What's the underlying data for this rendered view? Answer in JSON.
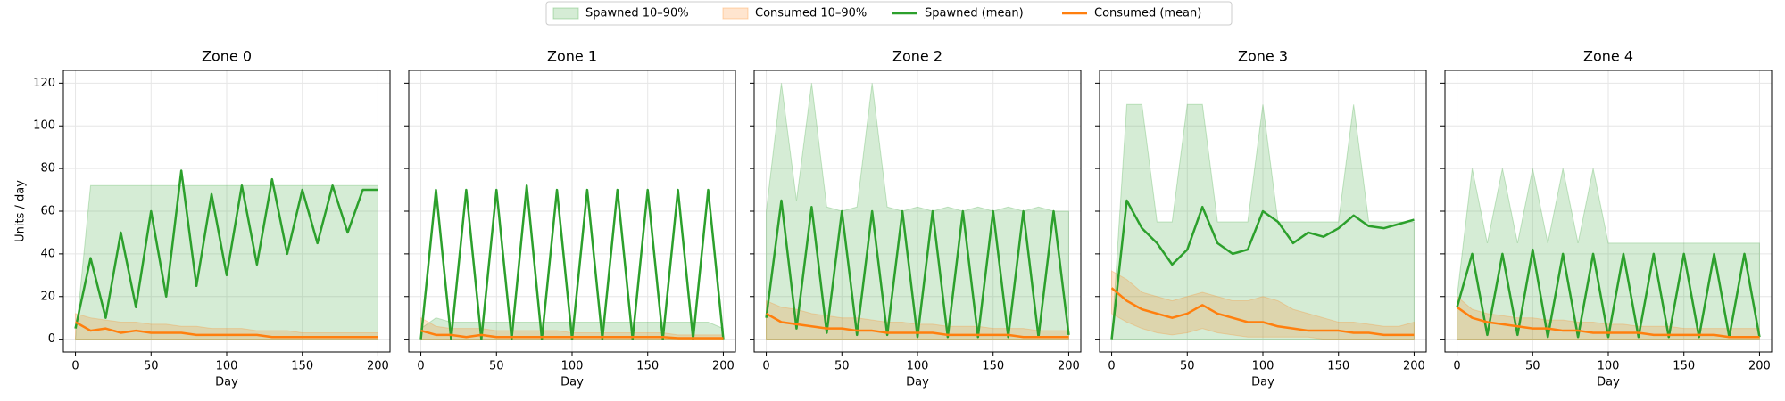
{
  "chart_data": [
    {
      "type": "line",
      "title": "Zone 0",
      "x_label": "Day",
      "y_label": "Units / day",
      "grid": true,
      "x": [
        0,
        10,
        20,
        30,
        40,
        50,
        60,
        70,
        80,
        90,
        100,
        110,
        120,
        130,
        140,
        150,
        160,
        170,
        180,
        190,
        200
      ],
      "xlim": [
        -8,
        208
      ],
      "xticks": [
        0,
        50,
        100,
        150,
        200
      ],
      "ylim": [
        -6,
        126
      ],
      "yticks": [
        0,
        20,
        40,
        60,
        80,
        100,
        120
      ],
      "bands": [
        {
          "name": "Spawned 10–90%",
          "color": "#2ca02c",
          "low": [
            0,
            0,
            0,
            0,
            0,
            0,
            0,
            0,
            0,
            0,
            0,
            0,
            0,
            0,
            0,
            0,
            0,
            0,
            0,
            0,
            0
          ],
          "high": [
            0,
            72,
            72,
            72,
            72,
            72,
            72,
            72,
            72,
            72,
            72,
            72,
            72,
            72,
            72,
            72,
            72,
            72,
            72,
            72,
            72
          ]
        },
        {
          "name": "Consumed 10–90%",
          "color": "#ff7f0e",
          "low": [
            0,
            0,
            0,
            0,
            0,
            0,
            0,
            0,
            0,
            0,
            0,
            0,
            0,
            0,
            0,
            0,
            0,
            0,
            0,
            0,
            0
          ],
          "high": [
            12,
            10,
            9,
            8,
            8,
            7,
            7,
            6,
            6,
            5,
            5,
            5,
            4,
            4,
            4,
            3,
            3,
            3,
            3,
            3,
            3
          ]
        }
      ],
      "series": [
        {
          "name": "Spawned (mean)",
          "color": "#2ca02c",
          "values": [
            5,
            38,
            10,
            50,
            15,
            60,
            20,
            79,
            25,
            68,
            30,
            72,
            35,
            75,
            40,
            70,
            45,
            72,
            50,
            70,
            70
          ]
        },
        {
          "name": "Consumed (mean)",
          "color": "#ff7f0e",
          "values": [
            8,
            4,
            5,
            3,
            4,
            3,
            3,
            3,
            2,
            2,
            2,
            2,
            2,
            1,
            1,
            1,
            1,
            1,
            1,
            1,
            1
          ]
        }
      ]
    },
    {
      "type": "line",
      "title": "Zone 1",
      "x_label": "Day",
      "grid": true,
      "x": [
        0,
        10,
        20,
        30,
        40,
        50,
        60,
        70,
        80,
        90,
        100,
        110,
        120,
        130,
        140,
        150,
        160,
        170,
        180,
        190,
        200
      ],
      "xlim": [
        -8,
        208
      ],
      "xticks": [
        0,
        50,
        100,
        150,
        200
      ],
      "ylim": [
        -6,
        126
      ],
      "yticks": [
        0,
        20,
        40,
        60,
        80,
        100,
        120
      ],
      "bands": [
        {
          "color": "#2ca02c",
          "low": [
            0,
            0,
            0,
            0,
            0,
            0,
            0,
            0,
            0,
            0,
            0,
            0,
            0,
            0,
            0,
            0,
            0,
            0,
            0,
            0,
            0
          ],
          "high": [
            5,
            10,
            8,
            8,
            8,
            8,
            8,
            8,
            8,
            8,
            8,
            8,
            8,
            8,
            8,
            8,
            8,
            8,
            8,
            8,
            5
          ]
        },
        {
          "color": "#ff7f0e",
          "low": [
            0,
            0,
            0,
            0,
            0,
            0,
            0,
            0,
            0,
            0,
            0,
            0,
            0,
            0,
            0,
            0,
            0,
            0,
            0,
            0,
            0
          ],
          "high": [
            10,
            6,
            5,
            5,
            5,
            4,
            4,
            4,
            4,
            4,
            3,
            3,
            3,
            3,
            3,
            3,
            3,
            2,
            2,
            2,
            2
          ]
        }
      ],
      "series": [
        {
          "color": "#2ca02c",
          "values": [
            0,
            70,
            0,
            70,
            0,
            70,
            0,
            72,
            0,
            70,
            0,
            70,
            0,
            70,
            0,
            70,
            0,
            70,
            0,
            70,
            0
          ]
        },
        {
          "color": "#ff7f0e",
          "values": [
            4,
            2,
            2,
            1,
            2,
            1,
            1,
            1,
            1,
            1,
            1,
            1,
            1,
            1,
            1,
            1,
            1,
            0.5,
            0.5,
            0.5,
            0.5
          ]
        }
      ]
    },
    {
      "type": "line",
      "title": "Zone 2",
      "x_label": "Day",
      "grid": true,
      "x": [
        0,
        10,
        20,
        30,
        40,
        50,
        60,
        70,
        80,
        90,
        100,
        110,
        120,
        130,
        140,
        150,
        160,
        170,
        180,
        190,
        200
      ],
      "xlim": [
        -8,
        208
      ],
      "xticks": [
        0,
        50,
        100,
        150,
        200
      ],
      "ylim": [
        -6,
        126
      ],
      "yticks": [
        0,
        20,
        40,
        60,
        80,
        100,
        120
      ],
      "bands": [
        {
          "color": "#2ca02c",
          "low": [
            0,
            0,
            0,
            0,
            0,
            0,
            0,
            0,
            0,
            0,
            0,
            0,
            0,
            0,
            0,
            0,
            0,
            0,
            0,
            0,
            0
          ],
          "high": [
            60,
            120,
            65,
            120,
            62,
            60,
            62,
            120,
            62,
            60,
            62,
            60,
            62,
            60,
            62,
            60,
            62,
            60,
            62,
            60,
            60
          ]
        },
        {
          "color": "#ff7f0e",
          "low": [
            0,
            0,
            0,
            0,
            0,
            0,
            0,
            0,
            0,
            0,
            0,
            0,
            0,
            0,
            0,
            0,
            0,
            0,
            0,
            0,
            0
          ],
          "high": [
            18,
            15,
            14,
            12,
            11,
            10,
            10,
            9,
            8,
            8,
            7,
            7,
            6,
            6,
            6,
            5,
            5,
            5,
            4,
            4,
            4
          ]
        }
      ],
      "series": [
        {
          "color": "#2ca02c",
          "values": [
            10,
            65,
            5,
            62,
            3,
            60,
            2,
            60,
            2,
            60,
            1,
            60,
            1,
            60,
            1,
            60,
            1,
            60,
            1,
            60,
            2
          ]
        },
        {
          "color": "#ff7f0e",
          "values": [
            12,
            8,
            7,
            6,
            5,
            5,
            4,
            4,
            3,
            3,
            3,
            3,
            2,
            2,
            2,
            2,
            2,
            1,
            1,
            1,
            1
          ]
        }
      ]
    },
    {
      "type": "line",
      "title": "Zone 3",
      "x_label": "Day",
      "grid": true,
      "x": [
        0,
        10,
        20,
        30,
        40,
        50,
        60,
        70,
        80,
        90,
        100,
        110,
        120,
        130,
        140,
        150,
        160,
        170,
        180,
        190,
        200
      ],
      "xlim": [
        -8,
        208
      ],
      "xticks": [
        0,
        50,
        100,
        150,
        200
      ],
      "ylim": [
        -6,
        126
      ],
      "yticks": [
        0,
        20,
        40,
        60,
        80,
        100,
        120
      ],
      "bands": [
        {
          "color": "#2ca02c",
          "low": [
            0,
            0,
            0,
            0,
            0,
            0,
            0,
            0,
            0,
            0,
            0,
            0,
            0,
            0,
            0,
            0,
            0,
            0,
            0,
            0,
            0
          ],
          "high": [
            0,
            110,
            110,
            55,
            55,
            110,
            110,
            55,
            55,
            55,
            110,
            55,
            55,
            55,
            55,
            55,
            110,
            55,
            55,
            55,
            55
          ]
        },
        {
          "color": "#ff7f0e",
          "low": [
            12,
            8,
            5,
            3,
            2,
            3,
            5,
            3,
            2,
            1,
            1,
            1,
            1,
            1,
            0,
            0,
            0,
            0,
            0,
            0,
            0
          ],
          "high": [
            32,
            28,
            22,
            20,
            18,
            20,
            22,
            20,
            18,
            18,
            20,
            18,
            14,
            12,
            10,
            8,
            8,
            7,
            6,
            6,
            8
          ]
        }
      ],
      "series": [
        {
          "color": "#2ca02c",
          "values": [
            0,
            65,
            52,
            45,
            35,
            42,
            62,
            45,
            40,
            42,
            60,
            55,
            45,
            50,
            48,
            52,
            58,
            53,
            52,
            54,
            56
          ]
        },
        {
          "color": "#ff7f0e",
          "values": [
            24,
            18,
            14,
            12,
            10,
            12,
            16,
            12,
            10,
            8,
            8,
            6,
            5,
            4,
            4,
            4,
            3,
            3,
            2,
            2,
            2
          ]
        }
      ]
    },
    {
      "type": "line",
      "title": "Zone 4",
      "x_label": "Day",
      "grid": true,
      "x": [
        0,
        10,
        20,
        30,
        40,
        50,
        60,
        70,
        80,
        90,
        100,
        110,
        120,
        130,
        140,
        150,
        160,
        170,
        180,
        190,
        200
      ],
      "xlim": [
        -8,
        208
      ],
      "xticks": [
        0,
        50,
        100,
        150,
        200
      ],
      "ylim": [
        -6,
        126
      ],
      "yticks": [
        0,
        20,
        40,
        60,
        80,
        100,
        120
      ],
      "bands": [
        {
          "color": "#2ca02c",
          "low": [
            0,
            0,
            0,
            0,
            0,
            0,
            0,
            0,
            0,
            0,
            0,
            0,
            0,
            0,
            0,
            0,
            0,
            0,
            0,
            0,
            0
          ],
          "high": [
            20,
            80,
            45,
            80,
            45,
            80,
            45,
            80,
            45,
            80,
            45,
            45,
            45,
            45,
            45,
            45,
            45,
            45,
            45,
            45,
            45
          ]
        },
        {
          "color": "#ff7f0e",
          "low": [
            0,
            0,
            0,
            0,
            0,
            0,
            0,
            0,
            0,
            0,
            0,
            0,
            0,
            0,
            0,
            0,
            0,
            0,
            0,
            0,
            0
          ],
          "high": [
            20,
            14,
            12,
            11,
            10,
            10,
            9,
            9,
            8,
            8,
            7,
            7,
            6,
            6,
            6,
            5,
            5,
            5,
            5,
            5,
            5
          ]
        }
      ],
      "series": [
        {
          "color": "#2ca02c",
          "values": [
            15,
            40,
            2,
            40,
            2,
            42,
            1,
            40,
            1,
            40,
            1,
            40,
            1,
            40,
            1,
            40,
            1,
            40,
            1,
            40,
            1
          ]
        },
        {
          "color": "#ff7f0e",
          "values": [
            15,
            10,
            8,
            7,
            6,
            5,
            5,
            4,
            4,
            3,
            3,
            3,
            3,
            2,
            2,
            2,
            2,
            2,
            1,
            1,
            1
          ]
        }
      ]
    }
  ]
}
